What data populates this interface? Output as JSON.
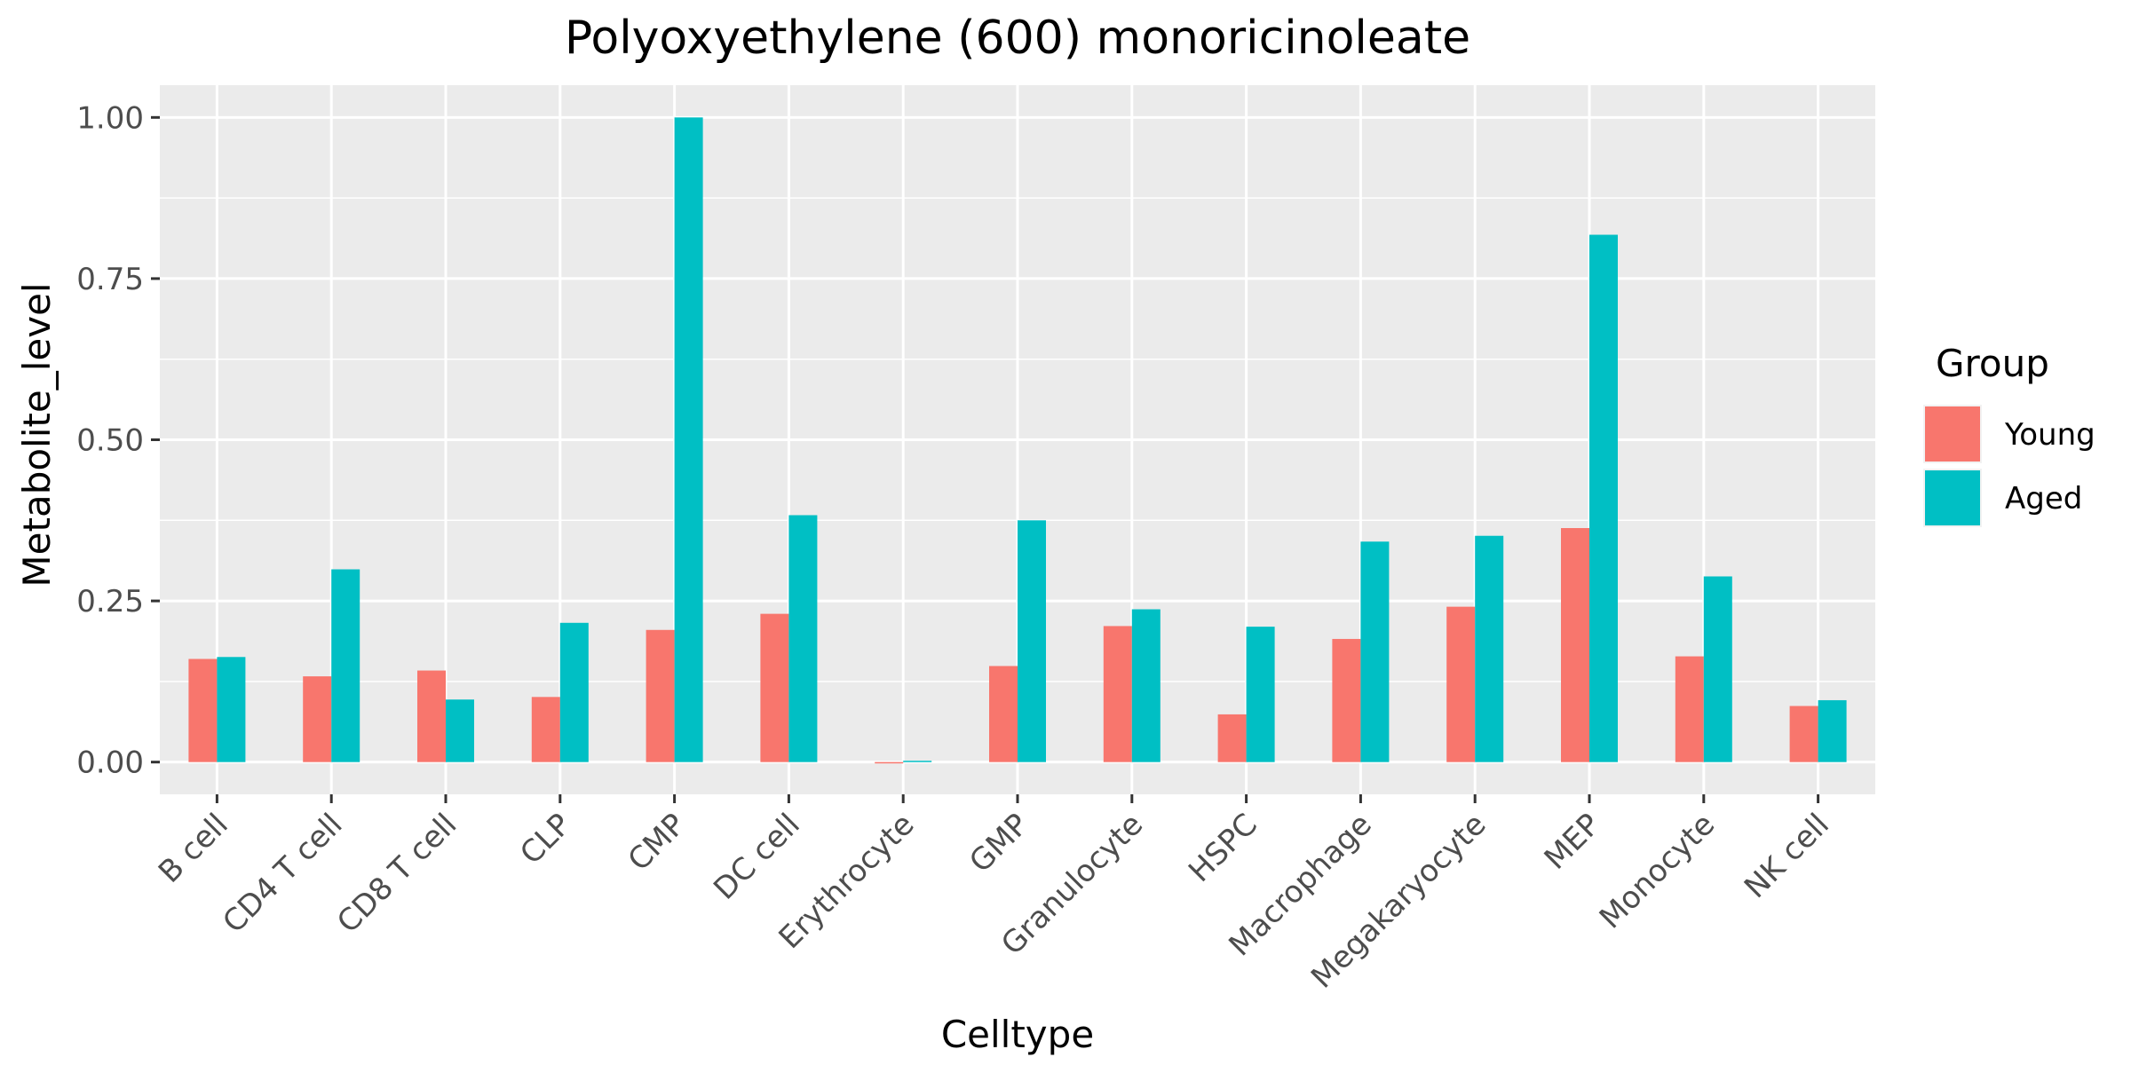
{
  "chart_data": {
    "type": "bar",
    "title": "Polyoxyethylene (600) monoricinoleate",
    "xlabel": "Celltype",
    "ylabel": "Metabolite_level",
    "ylim": [
      -0.05,
      1.05
    ],
    "yticks": [
      0.0,
      0.25,
      0.5,
      0.75,
      1.0
    ],
    "ytick_labels": [
      "0.00",
      "0.25",
      "0.50",
      "0.75",
      "1.00"
    ],
    "grid": true,
    "legend_position": "right",
    "legend_title": "Group",
    "categories": [
      "B cell",
      "CD4 T cell",
      "CD8 T cell",
      "CLP",
      "CMP",
      "DC cell",
      "Erythrocyte",
      "GMP",
      "Granulocyte",
      "HSPC",
      "Macrophage",
      "Megakaryocyte",
      "MEP",
      "Monocyte",
      "NK cell"
    ],
    "series": [
      {
        "name": "Young",
        "color": "#F8766D",
        "values": [
          0.16,
          0.133,
          0.142,
          0.101,
          0.205,
          0.23,
          0.0,
          0.149,
          0.211,
          0.074,
          0.191,
          0.241,
          0.363,
          0.164,
          0.087
        ]
      },
      {
        "name": "Aged",
        "color": "#00BFC4",
        "values": [
          0.163,
          0.299,
          0.097,
          0.216,
          1.0,
          0.383,
          0.002,
          0.375,
          0.237,
          0.21,
          0.342,
          0.351,
          0.818,
          0.288,
          0.096
        ]
      }
    ]
  },
  "colors": {
    "panel_background": "#EBEBEB",
    "grid": "#FFFFFF"
  }
}
